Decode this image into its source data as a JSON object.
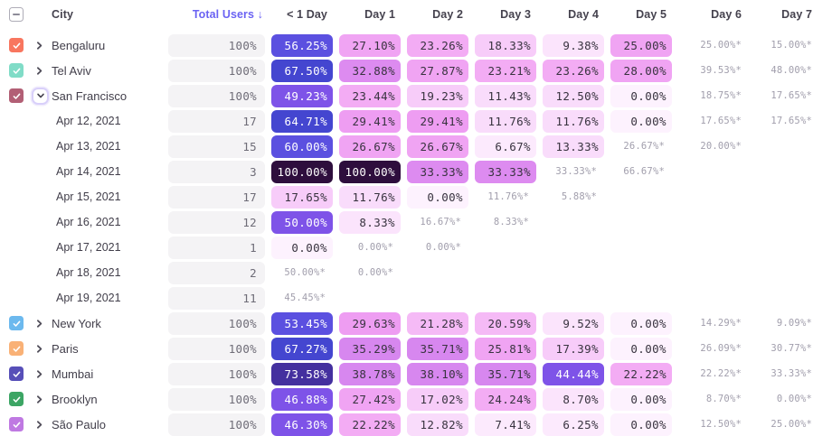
{
  "header": {
    "select_all_state": "indeterminate",
    "columns": [
      "City",
      "Total Users ↓",
      "< 1 Day",
      "Day 1",
      "Day 2",
      "Day 3",
      "Day 4",
      "Day 5",
      "Day 6",
      "Day 7"
    ]
  },
  "colors": {
    "accent": "#6b63f3",
    "pill_bg": "#f4f3f5",
    "provisional_text": "#a19eac",
    "header_text": "#45424e"
  },
  "rows": [
    {
      "type": "city",
      "label": "Bengaluru",
      "checkbox_color": "#f8765f",
      "chevron": "right",
      "total": "100%",
      "cells": [
        {
          "t": "56.25%",
          "p": 56.25
        },
        {
          "t": "27.10%",
          "p": 27.1
        },
        {
          "t": "23.26%",
          "p": 23.26
        },
        {
          "t": "18.33%",
          "p": 18.33
        },
        {
          "t": "9.38%",
          "p": 9.38
        },
        {
          "t": "25.00%",
          "p": 25.0
        },
        {
          "t": "25.00%*"
        },
        {
          "t": "15.00%*"
        }
      ]
    },
    {
      "type": "city",
      "label": "Tel Aviv",
      "checkbox_color": "#80dcc7",
      "chevron": "right",
      "total": "100%",
      "cells": [
        {
          "t": "67.50%",
          "p": 67.5
        },
        {
          "t": "32.88%",
          "p": 32.88
        },
        {
          "t": "27.87%",
          "p": 27.87
        },
        {
          "t": "23.21%",
          "p": 23.21
        },
        {
          "t": "23.26%",
          "p": 23.26
        },
        {
          "t": "28.00%",
          "p": 28.0
        },
        {
          "t": "39.53%*"
        },
        {
          "t": "48.00%*"
        }
      ]
    },
    {
      "type": "city",
      "label": "San Francisco",
      "checkbox_color": "#b25f75",
      "chevron": "down",
      "total": "100%",
      "cells": [
        {
          "t": "49.23%",
          "p": 49.23
        },
        {
          "t": "23.44%",
          "p": 23.44
        },
        {
          "t": "19.23%",
          "p": 19.23
        },
        {
          "t": "11.43%",
          "p": 11.43
        },
        {
          "t": "12.50%",
          "p": 12.5
        },
        {
          "t": "0.00%",
          "p": 0.0
        },
        {
          "t": "18.75%*"
        },
        {
          "t": "17.65%*"
        }
      ]
    },
    {
      "type": "date",
      "label": "Apr 12, 2021",
      "checkbox_color": null,
      "chevron": null,
      "total": "17",
      "cells": [
        {
          "t": "64.71%",
          "p": 64.71
        },
        {
          "t": "29.41%",
          "p": 29.41
        },
        {
          "t": "29.41%",
          "p": 29.41
        },
        {
          "t": "11.76%",
          "p": 11.76
        },
        {
          "t": "11.76%",
          "p": 11.76
        },
        {
          "t": "0.00%",
          "p": 0.0
        },
        {
          "t": "17.65%*"
        },
        {
          "t": "17.65%*"
        }
      ]
    },
    {
      "type": "date",
      "label": "Apr 13, 2021",
      "checkbox_color": null,
      "chevron": null,
      "total": "15",
      "cells": [
        {
          "t": "60.00%",
          "p": 60.0
        },
        {
          "t": "26.67%",
          "p": 26.67
        },
        {
          "t": "26.67%",
          "p": 26.67
        },
        {
          "t": "6.67%",
          "p": 6.67
        },
        {
          "t": "13.33%",
          "p": 13.33
        },
        {
          "t": "26.67%*"
        },
        {
          "t": "20.00%*"
        },
        null
      ]
    },
    {
      "type": "date",
      "label": "Apr 14, 2021",
      "checkbox_color": null,
      "chevron": null,
      "total": "3",
      "cells": [
        {
          "t": "100.00%",
          "p": 100.0
        },
        {
          "t": "100.00%",
          "p": 100.0
        },
        {
          "t": "33.33%",
          "p": 33.33
        },
        {
          "t": "33.33%",
          "p": 33.33
        },
        {
          "t": "33.33%*"
        },
        {
          "t": "66.67%*"
        },
        null,
        null
      ]
    },
    {
      "type": "date",
      "label": "Apr 15, 2021",
      "checkbox_color": null,
      "chevron": null,
      "total": "17",
      "cells": [
        {
          "t": "17.65%",
          "p": 17.65
        },
        {
          "t": "11.76%",
          "p": 11.76
        },
        {
          "t": "0.00%",
          "p": 0.0
        },
        {
          "t": "11.76%*"
        },
        {
          "t": "5.88%*"
        },
        null,
        null,
        null
      ]
    },
    {
      "type": "date",
      "label": "Apr 16, 2021",
      "checkbox_color": null,
      "chevron": null,
      "total": "12",
      "cells": [
        {
          "t": "50.00%",
          "p": 50.0
        },
        {
          "t": "8.33%",
          "p": 8.33
        },
        {
          "t": "16.67%*"
        },
        {
          "t": "8.33%*"
        },
        null,
        null,
        null,
        null
      ]
    },
    {
      "type": "date",
      "label": "Apr 17, 2021",
      "checkbox_color": null,
      "chevron": null,
      "total": "1",
      "cells": [
        {
          "t": "0.00%",
          "p": 0.0
        },
        {
          "t": "0.00%*"
        },
        {
          "t": "0.00%*"
        },
        null,
        null,
        null,
        null,
        null
      ]
    },
    {
      "type": "date",
      "label": "Apr 18, 2021",
      "checkbox_color": null,
      "chevron": null,
      "total": "2",
      "cells": [
        {
          "t": "50.00%*"
        },
        {
          "t": "0.00%*"
        },
        null,
        null,
        null,
        null,
        null,
        null
      ]
    },
    {
      "type": "date",
      "label": "Apr 19, 2021",
      "checkbox_color": null,
      "chevron": null,
      "total": "11",
      "cells": [
        {
          "t": "45.45%*"
        },
        null,
        null,
        null,
        null,
        null,
        null,
        null
      ]
    },
    {
      "type": "city",
      "label": "New York",
      "checkbox_color": "#6cb9ee",
      "chevron": "right",
      "total": "100%",
      "cells": [
        {
          "t": "53.45%",
          "p": 53.45
        },
        {
          "t": "29.63%",
          "p": 29.63
        },
        {
          "t": "21.28%",
          "p": 21.28
        },
        {
          "t": "20.59%",
          "p": 20.59
        },
        {
          "t": "9.52%",
          "p": 9.52
        },
        {
          "t": "0.00%",
          "p": 0.0
        },
        {
          "t": "14.29%*"
        },
        {
          "t": "9.09%*"
        }
      ]
    },
    {
      "type": "city",
      "label": "Paris",
      "checkbox_color": "#f9b176",
      "chevron": "right",
      "total": "100%",
      "cells": [
        {
          "t": "67.27%",
          "p": 67.27
        },
        {
          "t": "35.29%",
          "p": 35.29
        },
        {
          "t": "35.71%",
          "p": 35.71
        },
        {
          "t": "25.81%",
          "p": 25.81
        },
        {
          "t": "17.39%",
          "p": 17.39
        },
        {
          "t": "0.00%",
          "p": 0.0
        },
        {
          "t": "26.09%*"
        },
        {
          "t": "30.77%*"
        }
      ]
    },
    {
      "type": "city",
      "label": "Mumbai",
      "checkbox_color": "#574fb8",
      "chevron": "right",
      "total": "100%",
      "cells": [
        {
          "t": "73.58%",
          "p": 73.58
        },
        {
          "t": "38.78%",
          "p": 38.78
        },
        {
          "t": "38.10%",
          "p": 38.1
        },
        {
          "t": "35.71%",
          "p": 35.71
        },
        {
          "t": "44.44%",
          "p": 44.44
        },
        {
          "t": "22.22%",
          "p": 22.22
        },
        {
          "t": "22.22%*"
        },
        {
          "t": "33.33%*"
        }
      ]
    },
    {
      "type": "city",
      "label": "Brooklyn",
      "checkbox_color": "#3ca564",
      "chevron": "right",
      "total": "100%",
      "cells": [
        {
          "t": "46.88%",
          "p": 46.88
        },
        {
          "t": "27.42%",
          "p": 27.42
        },
        {
          "t": "17.02%",
          "p": 17.02
        },
        {
          "t": "24.24%",
          "p": 24.24
        },
        {
          "t": "8.70%",
          "p": 8.7
        },
        {
          "t": "0.00%",
          "p": 0.0
        },
        {
          "t": "8.70%*"
        },
        {
          "t": "0.00%*"
        }
      ]
    },
    {
      "type": "city",
      "label": "São Paulo",
      "checkbox_color": "#bf79e2",
      "chevron": "right",
      "total": "100%",
      "cells": [
        {
          "t": "46.30%",
          "p": 46.3
        },
        {
          "t": "22.22%",
          "p": 22.22
        },
        {
          "t": "12.82%",
          "p": 12.82
        },
        {
          "t": "7.41%",
          "p": 7.41
        },
        {
          "t": "6.25%",
          "p": 6.25
        },
        {
          "t": "0.00%",
          "p": 0.0
        },
        {
          "t": "12.50%*"
        },
        {
          "t": "25.00%*"
        }
      ]
    }
  ]
}
